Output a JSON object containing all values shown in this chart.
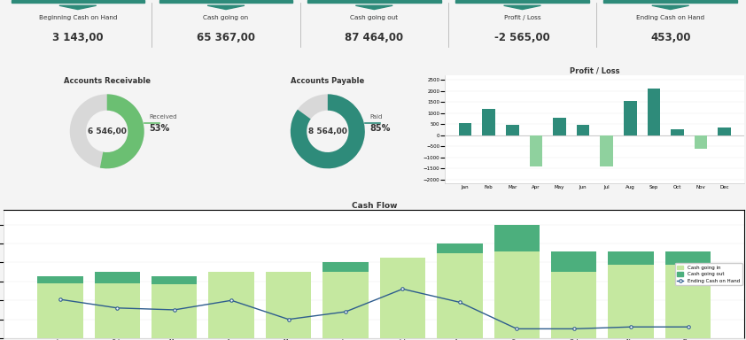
{
  "kpi_labels": [
    "Beginning Cash on Hand",
    "Cash going on",
    "Cash going out",
    "Profit / Loss",
    "Ending Cash on Hand"
  ],
  "kpi_values": [
    "3 143,00",
    "65 367,00",
    "87 464,00",
    "-2 565,00",
    "453,00"
  ],
  "ar_label": "Accounts Receivable",
  "ar_value": "6 546,00",
  "ar_pct": 53,
  "ar_label2": "Received",
  "ap_label": "Accounts Payable",
  "ap_value": "8 564,00",
  "ap_pct": 85,
  "ap_label2": "Paid",
  "pl_title": "Profit / Loss",
  "pl_months": [
    "Jan",
    "Feb",
    "Mar",
    "Apr",
    "May",
    "Jun",
    "Jul",
    "Aug",
    "Sep",
    "Oct",
    "Nov",
    "Dec"
  ],
  "pl_values": [
    550,
    1200,
    480,
    -1400,
    800,
    450,
    -1400,
    1550,
    2100,
    280,
    -600,
    350
  ],
  "pl_color_pos": "#2e8b7a",
  "pl_color_neg": "#8fd19e",
  "cf_title": "Cash Flow",
  "cf_months": [
    "Jan",
    "Feb",
    "Mar",
    "Apr",
    "May",
    "Jun",
    "Jul",
    "Aug",
    "Sep",
    "Oct",
    "Nov",
    "Dec"
  ],
  "cf_in": [
    5800,
    5800,
    5700,
    7000,
    7000,
    7000,
    8500,
    9000,
    9200,
    7000,
    7800,
    7800
  ],
  "cf_out": [
    6500,
    7000,
    6500,
    5800,
    5800,
    8000,
    8000,
    10000,
    12000,
    9200,
    9200,
    9200
  ],
  "cf_end": [
    4100,
    3200,
    3000,
    4000,
    2000,
    2800,
    5200,
    3800,
    1000,
    1000,
    1200,
    1200
  ],
  "cf_color_in": "#c5e8a0",
  "cf_color_out": "#4caf7d",
  "cf_color_line": "#2e5d8e",
  "header_bg": "#c8e6e6",
  "header_label_bg": "#dff0f0",
  "panel_bg": "#ffffff",
  "top_bar_color": "#2e8b7a",
  "ar_color": "#6bbf72",
  "ar_bg": "#d8d8d8",
  "ap_color": "#2e8b7a",
  "ap_bg": "#d8d8d8",
  "fig_bg": "#f4f4f4",
  "border_color": "#cccccc",
  "grid_color": "#e8e8e8"
}
